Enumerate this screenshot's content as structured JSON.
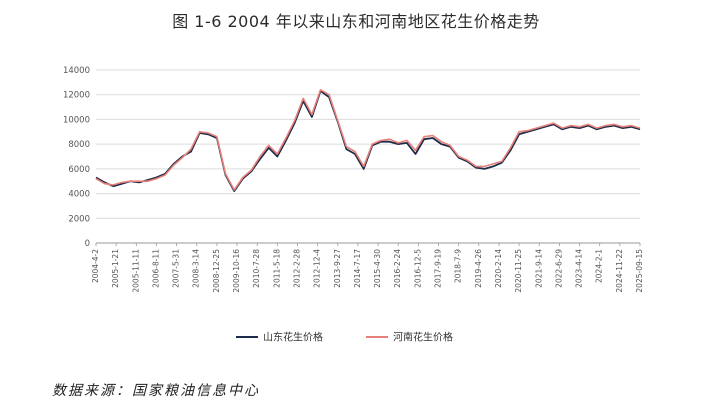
{
  "chart_data": {
    "type": "line",
    "title": "图 1-6   2004 年以来山东和河南地区花生价格走势",
    "xlabel": "",
    "ylabel": "",
    "ylim": [
      0,
      14000
    ],
    "yticks": [
      0,
      2000,
      4000,
      6000,
      8000,
      10000,
      12000,
      14000
    ],
    "x_tick_labels": [
      "2004-4-2",
      "2005-1-21",
      "2005-11-11",
      "2006-8-11",
      "2007-5-31",
      "2008-3-14",
      "2008-12-25",
      "2009-10-16",
      "2010-7-28",
      "2011-5-18",
      "2012-2-28",
      "2012-12-4",
      "2013-9-27",
      "2014-7-17",
      "2015-4-30",
      "2016-2-24",
      "2016-12-5",
      "2017-9-19",
      "2018-7-9",
      "2019-4-26",
      "2020-2-14",
      "2020-11-25",
      "2021-9-14",
      "2022-6-29",
      "2023-4-14",
      "2024-2-1",
      "2024-11-22",
      "2025-09-15"
    ],
    "x": [
      "2004-04",
      "2004-06",
      "2004-09",
      "2005-01",
      "2005-06",
      "2005-11",
      "2006-03",
      "2006-08",
      "2007-01",
      "2007-05",
      "2007-10",
      "2008-03",
      "2008-06",
      "2008-09",
      "2008-12",
      "2009-03",
      "2009-06",
      "2009-10",
      "2010-01",
      "2010-04",
      "2010-07",
      "2010-10",
      "2011-01",
      "2011-05",
      "2011-08",
      "2011-11",
      "2012-02",
      "2012-05",
      "2012-08",
      "2012-12",
      "2013-03",
      "2013-06",
      "2013-09",
      "2013-12",
      "2014-03",
      "2014-07",
      "2014-11",
      "2015-04",
      "2015-09",
      "2016-02",
      "2016-07",
      "2016-12",
      "2017-05",
      "2017-09",
      "2018-02",
      "2018-07",
      "2018-11",
      "2019-04",
      "2019-09",
      "2020-02",
      "2020-07",
      "2020-11",
      "2021-04",
      "2021-09",
      "2022-02",
      "2022-06",
      "2022-11",
      "2023-04",
      "2023-09",
      "2024-02",
      "2024-07",
      "2024-11",
      "2025-04",
      "2025-09"
    ],
    "series": [
      {
        "name": "山东花生价格",
        "color": "#1c2b4a",
        "values": [
          5300,
          4900,
          4600,
          4800,
          5000,
          4900,
          5100,
          5300,
          5600,
          6400,
          7000,
          7400,
          8900,
          8800,
          8500,
          5500,
          4200,
          5200,
          5800,
          6800,
          7700,
          7000,
          8300,
          9700,
          11500,
          10200,
          12300,
          11800,
          9800,
          7600,
          7200,
          6000,
          7900,
          8200,
          8200,
          8000,
          8100,
          7200,
          8400,
          8500,
          8000,
          7800,
          6900,
          6600,
          6100,
          6000,
          6200,
          6500,
          7500,
          8800,
          9000,
          9200,
          9400,
          9600,
          9200,
          9400,
          9300,
          9500,
          9200,
          9400,
          9500,
          9300,
          9400,
          9200
        ]
      },
      {
        "name": "河南花生价格",
        "color": "#e8807a",
        "values": [
          5200,
          4800,
          4700,
          4900,
          5000,
          5000,
          5000,
          5200,
          5500,
          6300,
          6900,
          7600,
          9000,
          8900,
          8600,
          5600,
          4300,
          5300,
          5900,
          7000,
          7900,
          7200,
          8500,
          9900,
          11700,
          10400,
          12400,
          12000,
          9900,
          7800,
          7400,
          6200,
          8000,
          8300,
          8400,
          8100,
          8300,
          7500,
          8600,
          8700,
          8200,
          7900,
          7000,
          6700,
          6200,
          6200,
          6400,
          6600,
          7700,
          9000,
          9100,
          9300,
          9500,
          9700,
          9300,
          9500,
          9400,
          9600,
          9300,
          9500,
          9600,
          9400,
          9500,
          9300
        ]
      }
    ],
    "grid": true,
    "legend": "bottom"
  },
  "source_note": "数据来源：国家粮油信息中心"
}
